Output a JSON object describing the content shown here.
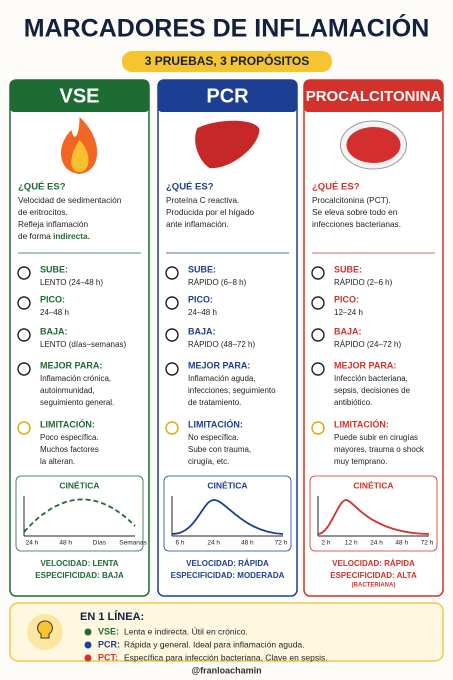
{
  "header": {
    "title": "MARCADORES DE INFLAMACIÓN",
    "subtitle": "3 PRUEBAS, 3 PROPÓSITOS"
  },
  "columns": [
    {
      "title": "VSE",
      "color": "#1e6b34",
      "what_label": "¿QUÉ ES?",
      "what_lines": [
        [
          {
            "text": "Velocidad de sedimentación"
          }
        ],
        [
          {
            "text": "de eritrocitos."
          }
        ],
        [
          {
            "text": "Refleja inflamación"
          }
        ],
        [
          {
            "text": "de forma "
          },
          {
            "text": "indirecta.",
            "bold": true
          }
        ]
      ],
      "rows": [
        {
          "label": "SUBE:",
          "lines": [
            "LENTO (24–48 h)"
          ]
        },
        {
          "label": "PICO:",
          "lines": [
            "24–48 h"
          ]
        },
        {
          "label": "BAJA:",
          "lines": [
            "LENTO (días–semanas)"
          ]
        },
        {
          "label": "MEJOR PARA:",
          "lines": [
            "Inflamación crónica,",
            "autoinmunidad,",
            "seguimiento general."
          ]
        },
        {
          "label": "LIMITACIÓN:",
          "lines": [
            "Poco específica.",
            "Muchos factores",
            "la alteran."
          ]
        }
      ],
      "kinetics": {
        "title": "CINÉTICA",
        "ticks": [
          "24 h",
          "48 h",
          "Días",
          "Semanas"
        ]
      },
      "summary_lines": [
        "VELOCIDAD: LENTA",
        "ESPECIFICIDAD: BAJA"
      ]
    },
    {
      "title": "PCR",
      "color": "#1c3f94",
      "what_label": "¿QUÉ ES?",
      "what_lines": [
        [
          {
            "text": "Proteína C reactiva."
          }
        ],
        [
          {
            "text": "Producida por el hígado"
          }
        ],
        [
          {
            "text": "ante inflamación."
          }
        ]
      ],
      "rows": [
        {
          "label": "SUBE:",
          "lines": [
            "RÁPIDO (6–8 h)"
          ]
        },
        {
          "label": "PICO:",
          "lines": [
            "24–48 h"
          ]
        },
        {
          "label": "BAJA:",
          "lines": [
            "RÁPIDO (48–72 h)"
          ]
        },
        {
          "label": "MEJOR PARA:",
          "lines": [
            "Inflamación aguda,",
            "infecciones, seguimiento",
            "de tratamiento."
          ]
        },
        {
          "label": "LIMITACIÓN:",
          "lines": [
            "No específica.",
            "Sube con trauma,",
            "cirugía, etc."
          ]
        }
      ],
      "kinetics": {
        "title": "CINÉTICA",
        "ticks": [
          "6 h",
          "24 h",
          "48 h",
          "72 h"
        ]
      },
      "summary_lines": [
        "VELOCIDAD: RÁPIDA",
        "ESPECIFICIDAD: MODERADA"
      ]
    },
    {
      "title": "PROCALCITONINA",
      "color": "#d3312b",
      "what_label": "¿QUÉ ES?",
      "what_lines": [
        [
          {
            "text": "Procalcitonina (PCT)."
          }
        ],
        [
          {
            "text": "Se eleva sobre todo en"
          }
        ],
        [
          {
            "text": "infecciones bacterianas."
          }
        ]
      ],
      "rows": [
        {
          "label": "SUBE:",
          "lines": [
            "RÁPIDO (2–6 h)"
          ]
        },
        {
          "label": "PICO:",
          "lines": [
            "12–24 h"
          ]
        },
        {
          "label": "BAJA:",
          "lines": [
            "RÁPIDO (24–72 h)"
          ]
        },
        {
          "label": "MEJOR PARA:",
          "lines": [
            "Infección bacteriana,",
            "sepsis, decisiones de",
            "antibiótico."
          ]
        },
        {
          "label": "LIMITACIÓN:",
          "lines": [
            "Puede subir en cirugías",
            "mayores, trauma o shock",
            "muy temprano."
          ]
        }
      ],
      "kinetics": {
        "title": "CINÉTICA",
        "ticks": [
          "2 h",
          "12 h",
          "24 h",
          "48 h",
          "72 h"
        ]
      },
      "summary_lines": [
        "VELOCIDAD: RÁPIDA",
        "ESPECIFICIDAD: ALTA",
        "(BACTERIANA)"
      ]
    }
  ],
  "summary": {
    "title": "EN 1 LÍNEA:",
    "items": [
      {
        "label": "VSE:",
        "text": "Lenta e indirecta. Útil en crónico."
      },
      {
        "label": "PCR:",
        "text": "Rápida y general. Ideal para inflamación aguda."
      },
      {
        "label": "PCT:",
        "text": "Específica para infección bacteriana. Clave en sepsis."
      }
    ]
  },
  "footer": "@franloachamin"
}
